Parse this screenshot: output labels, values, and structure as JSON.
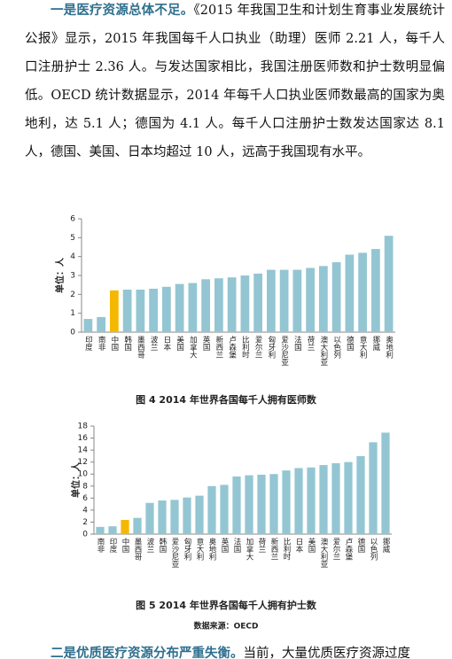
{
  "paragraphs": [
    {
      "lead": "一是医疗资源总体不足。",
      "text": "《2015 年我国卫生和计划生育事业发展统计公报》显示，2015 年我国每千人口执业（助理）医师 2.21 人，每千人口注册护士 2.36 人。与发达国家相比，我国注册医师数和护士数明显偏低。OECD 统计数据显示，2014 年每千人口执业医师数最高的国家为奥地利，达 5.1 人；德国为 4.1 人。每千人口注册护士数发达国家达 8.1 人，德国、美国、日本均超过 10 人，远高于我国现有水平。"
    },
    {
      "lead": "二是优质医疗资源分布严重失衡。",
      "text": "当前，大量优质医疗资源过度"
    }
  ],
  "chart_data": [
    {
      "type": "bar",
      "caption": "图 4  2014 年世界各国每千人拥有医师数",
      "y_label": "单位：人",
      "categories": [
        "印度",
        "南非",
        "中国",
        "韩国",
        "墨西哥",
        "波兰",
        "日本",
        "美国",
        "加拿大",
        "英国",
        "新西兰",
        "卢森堡",
        "比利时",
        "爱尔兰",
        "匈牙利",
        "爱沙尼亚",
        "法国",
        "荷兰",
        "澳大利亚",
        "以色列",
        "德国",
        "意大利",
        "挪威",
        "奥地利"
      ],
      "values": [
        0.7,
        0.8,
        2.21,
        2.25,
        2.25,
        2.3,
        2.4,
        2.55,
        2.6,
        2.8,
        2.85,
        2.9,
        3.0,
        3.1,
        3.3,
        3.3,
        3.3,
        3.4,
        3.5,
        3.7,
        4.1,
        4.2,
        4.4,
        5.1
      ],
      "colors": [
        "#93c6d2",
        "#93c6d2",
        "#f5b800",
        "#93c6d2",
        "#93c6d2",
        "#93c6d2",
        "#93c6d2",
        "#93c6d2",
        "#93c6d2",
        "#93c6d2",
        "#93c6d2",
        "#93c6d2",
        "#93c6d2",
        "#93c6d2",
        "#93c6d2",
        "#93c6d2",
        "#93c6d2",
        "#93c6d2",
        "#93c6d2",
        "#93c6d2",
        "#93c6d2",
        "#93c6d2",
        "#93c6d2",
        "#93c6d2"
      ],
      "ylim": [
        0,
        6
      ],
      "yticks": [
        0,
        1,
        2,
        3,
        4,
        5,
        6
      ]
    },
    {
      "type": "bar",
      "caption": "图 5  2014 年世界各国每千人拥有护士数",
      "y_label": "单位：人",
      "source": "数据来源：OECD",
      "categories": [
        "南非",
        "印度",
        "中国",
        "墨西哥",
        "波兰",
        "韩国",
        "爱沙尼亚",
        "匈牙利",
        "意大利",
        "奥地利",
        "英国",
        "法国",
        "加拿大",
        "荷兰",
        "新西兰",
        "比利时",
        "日本",
        "美国",
        "澳大利亚",
        "爱尔兰",
        "卢森堡",
        "德国",
        "以色列",
        "挪威"
      ],
      "values": [
        1.2,
        1.3,
        2.36,
        2.7,
        5.2,
        5.6,
        5.7,
        6.1,
        6.4,
        8.0,
        8.2,
        9.6,
        9.8,
        9.9,
        10.0,
        10.6,
        11.0,
        11.1,
        11.5,
        11.8,
        12.0,
        13.0,
        15.3,
        16.9
      ],
      "colors": [
        "#93c6d2",
        "#93c6d2",
        "#f5b800",
        "#93c6d2",
        "#93c6d2",
        "#93c6d2",
        "#93c6d2",
        "#93c6d2",
        "#93c6d2",
        "#93c6d2",
        "#93c6d2",
        "#93c6d2",
        "#93c6d2",
        "#93c6d2",
        "#93c6d2",
        "#93c6d2",
        "#93c6d2",
        "#93c6d2",
        "#93c6d2",
        "#93c6d2",
        "#93c6d2",
        "#93c6d2",
        "#93c6d2",
        "#93c6d2"
      ],
      "ylim": [
        0,
        18
      ],
      "yticks": [
        0,
        2,
        4,
        6,
        8,
        10,
        12,
        14,
        16,
        18
      ]
    }
  ]
}
